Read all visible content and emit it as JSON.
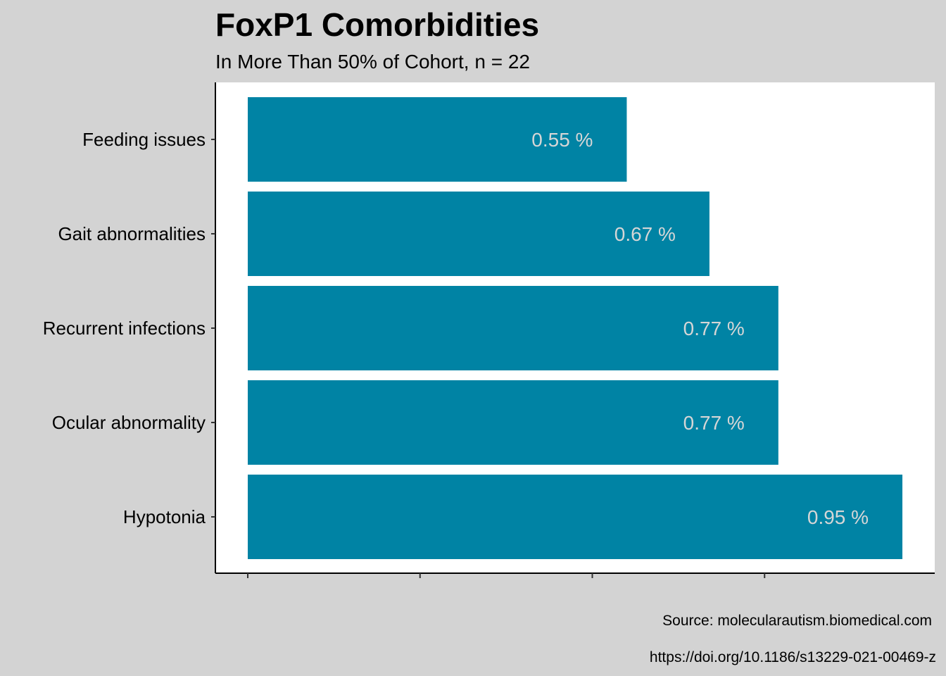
{
  "chart_data": {
    "type": "bar",
    "orientation": "horizontal",
    "title": "FoxP1 Comorbidities",
    "subtitle": "In More Than 50% of Cohort, n = 22",
    "categories": [
      "Feeding issues",
      "Gait abnormalities",
      "Recurrent infections",
      "Ocular abnormality",
      "Hypotonia"
    ],
    "values": [
      0.55,
      0.67,
      0.77,
      0.77,
      0.95
    ],
    "data_labels": [
      "0.55 %",
      "0.67 %",
      "0.77 %",
      "0.77 %",
      "0.95 %"
    ],
    "xlim": [
      0,
      1
    ],
    "x_ticks": [
      0,
      0.25,
      0.5,
      0.75
    ],
    "x_tick_labels_shown": false,
    "grid": false,
    "legend": "none",
    "bar_color": "#0083a4",
    "label_color": "#d6d6d6",
    "panel_background": "#ffffff",
    "page_background": "#d3d3d3"
  },
  "captions": {
    "source": "Source: molecularautism.biomedical.com",
    "doi": "https://doi.org/10.1186/s13229-021-00469-z"
  }
}
